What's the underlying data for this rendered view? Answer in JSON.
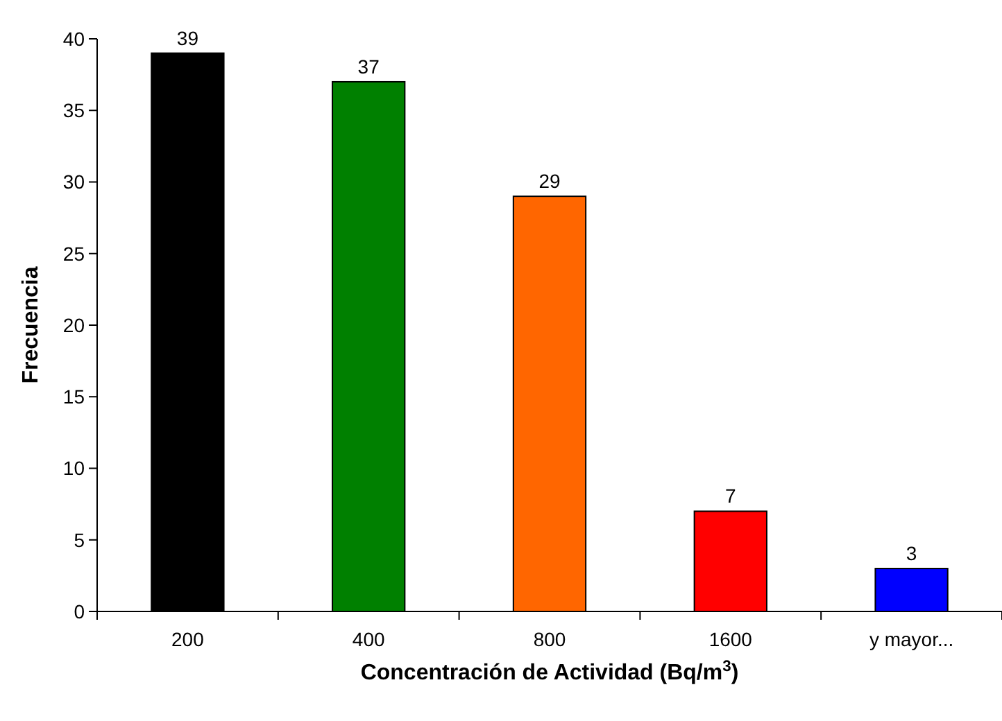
{
  "chart_data": {
    "type": "bar",
    "xlabel": "Concentración de Actividad (Bq/m$^{3}$)",
    "ylabel": "Frecuencia",
    "categories": [
      "200",
      "400",
      "800",
      "1600",
      "y mayor..."
    ],
    "values": [
      39,
      37,
      29,
      7,
      3
    ],
    "colors": [
      "#000000",
      "#008000",
      "#ff6600",
      "#ff0000",
      "#0000ff"
    ],
    "ylim": [
      0,
      40
    ],
    "yticks": [
      0,
      5,
      10,
      15,
      20,
      25,
      30,
      35,
      40
    ],
    "grid": false,
    "data_labels": true
  }
}
